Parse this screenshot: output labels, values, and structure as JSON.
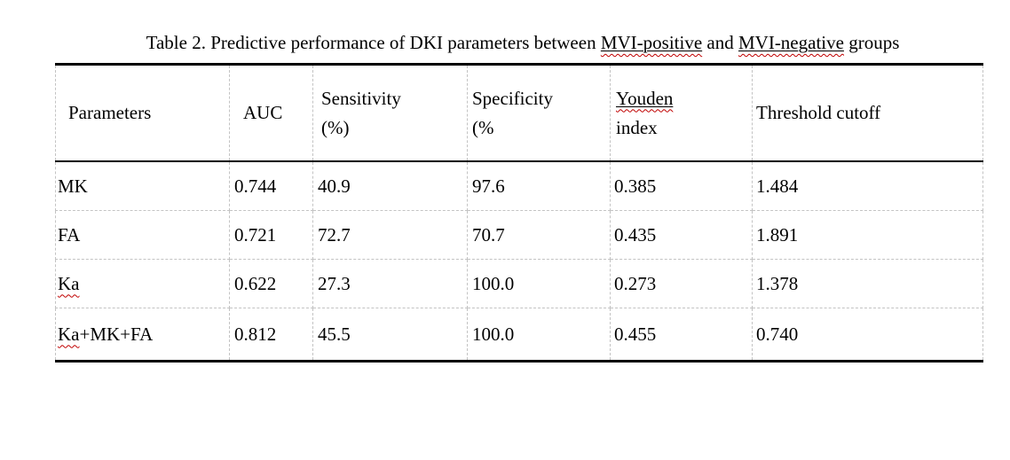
{
  "caption": {
    "full_text": "Table 2. Predictive performance of DKI parameters between MVI-positive and MVI-negative groups",
    "parts": [
      {
        "text": "Table 2. Predictive performance of DKI parameters between "
      },
      {
        "text": "MVI-positive",
        "underline": true,
        "squiggle": true
      },
      {
        "text": " and "
      },
      {
        "text": "MVI-negative",
        "underline": true,
        "squiggle": true
      },
      {
        "text": " groups"
      }
    ]
  },
  "table": {
    "header": [
      {
        "key": "parameters",
        "label": "Parameters",
        "lines": [
          [
            {
              "text": "Parameters"
            }
          ]
        ]
      },
      {
        "key": "auc",
        "label": "AUC",
        "lines": [
          [
            {
              "text": "AUC"
            }
          ]
        ]
      },
      {
        "key": "sensitivity",
        "label": "Sensitivity (%)",
        "lines": [
          [
            {
              "text": "Sensitivity"
            }
          ],
          [
            {
              "text": "(%)"
            }
          ]
        ]
      },
      {
        "key": "specificity",
        "label": "Specificity (%",
        "lines": [
          [
            {
              "text": "Specificity"
            }
          ],
          [
            {
              "text": "(%"
            }
          ]
        ]
      },
      {
        "key": "youden",
        "label": "Youden index",
        "lines": [
          [
            {
              "text": "Youden",
              "underline": true,
              "squiggle": true
            }
          ],
          [
            {
              "text": "index"
            }
          ]
        ]
      },
      {
        "key": "threshold",
        "label": "Threshold cutoff",
        "lines": [
          [
            {
              "text": "Threshold cutoff"
            }
          ]
        ]
      }
    ],
    "value_keys": [
      "auc",
      "sensitivity",
      "specificity",
      "youden",
      "threshold"
    ],
    "rows": [
      {
        "parameter": [
          {
            "text": "MK"
          }
        ],
        "values": [
          "0.744",
          "40.9",
          "97.6",
          "0.385",
          "1.484"
        ]
      },
      {
        "parameter": [
          {
            "text": "FA"
          }
        ],
        "values": [
          "0.721",
          "72.7",
          "70.7",
          "0.435",
          "1.891"
        ]
      },
      {
        "parameter": [
          {
            "text": "Ka",
            "squiggle": true
          }
        ],
        "values": [
          "0.622",
          "27.3",
          "100.0",
          "0.273",
          "1.378"
        ]
      },
      {
        "parameter": [
          {
            "text": "Ka",
            "squiggle": true
          },
          {
            "text": "+MK+FA"
          }
        ],
        "values": [
          "0.812",
          "45.5",
          "100.0",
          "0.455",
          "0.740"
        ]
      }
    ]
  },
  "colors": {
    "text": "#000000",
    "strong_border": "#000000",
    "grid_dashed": "#c3c3c3",
    "squiggle": "#c00000",
    "background": "#ffffff"
  }
}
